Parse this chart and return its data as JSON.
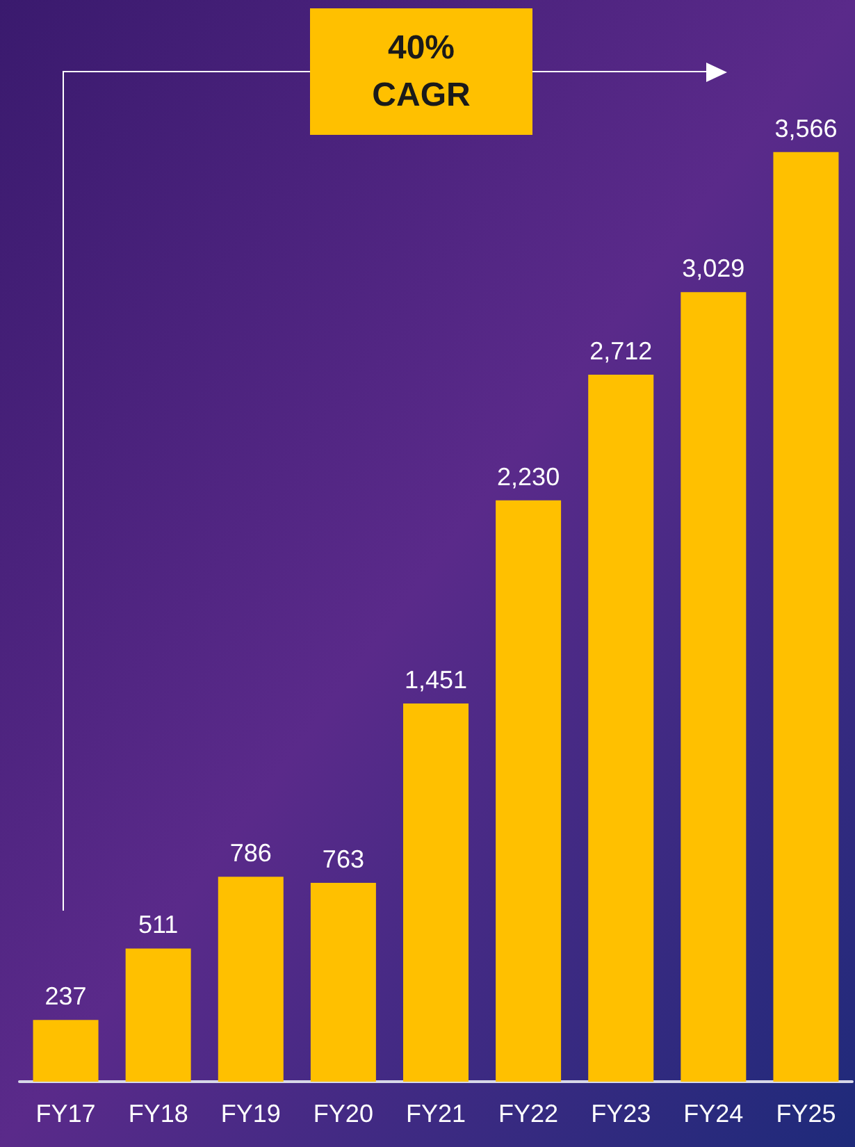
{
  "chart_data": {
    "type": "bar",
    "categories": [
      "FY17",
      "FY18",
      "FY19",
      "FY20",
      "FY21",
      "FY22",
      "FY23",
      "FY24",
      "FY25"
    ],
    "values": [
      237,
      511,
      786,
      763,
      1451,
      2230,
      2712,
      3029,
      3566
    ],
    "color": "#ffc000",
    "value_labels": [
      "237",
      "511",
      "786",
      "763",
      "1,451",
      "2,230",
      "2,712",
      "3,029",
      "3,566"
    ],
    "annotations": [
      "40%\nCAGR"
    ]
  }
}
